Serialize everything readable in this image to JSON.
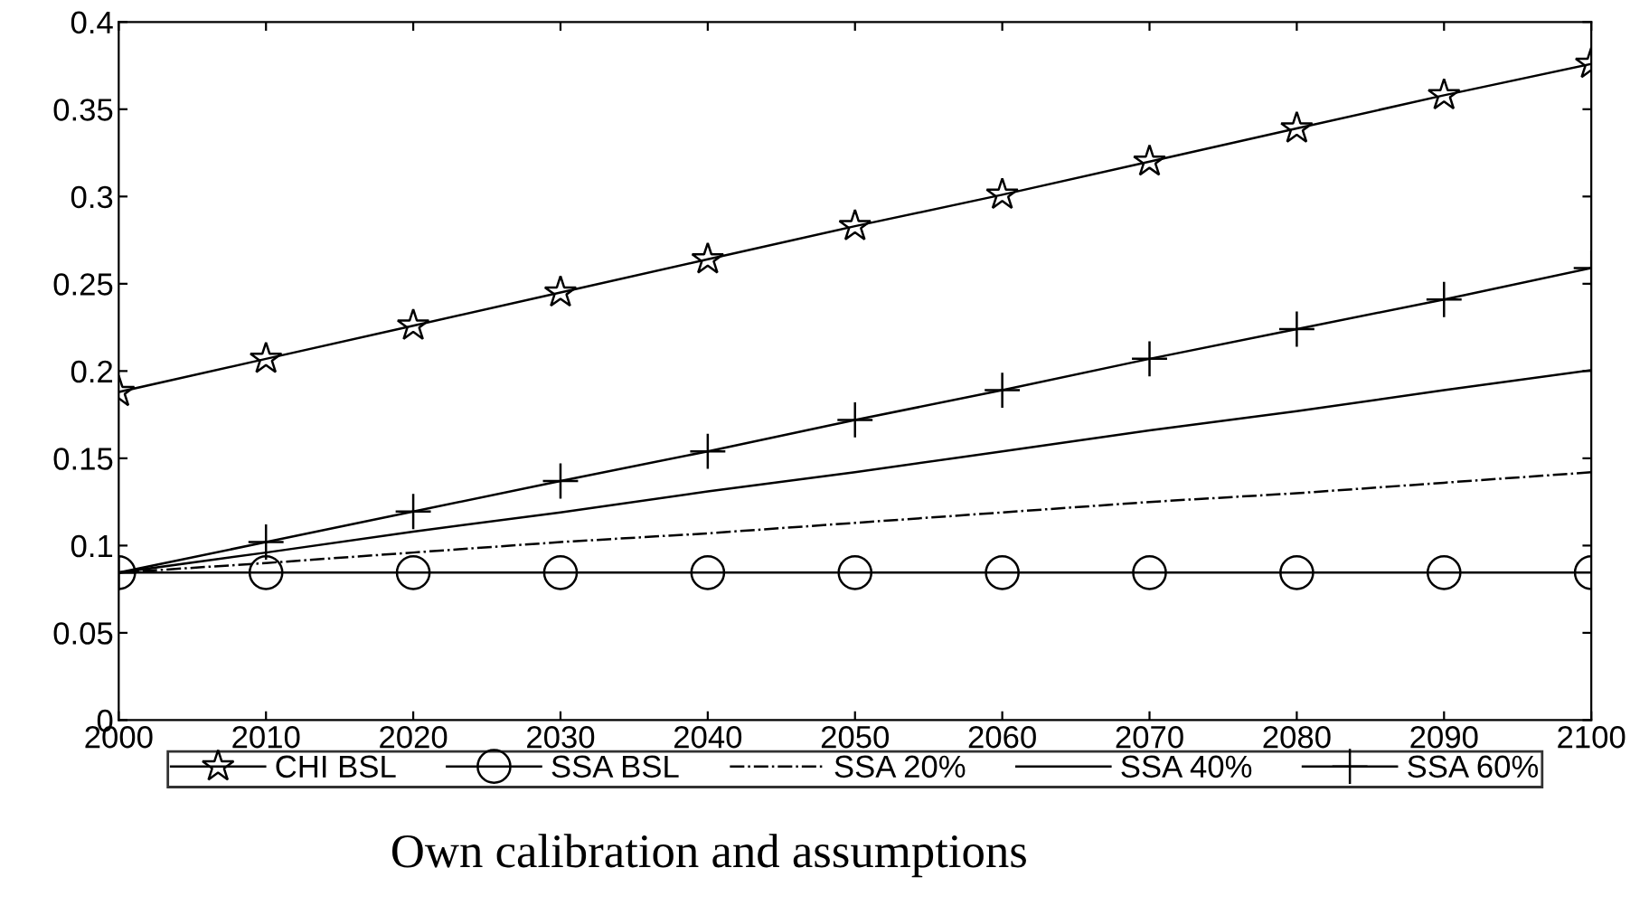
{
  "chart_data": {
    "type": "line",
    "x": [
      2000,
      2010,
      2020,
      2030,
      2040,
      2050,
      2060,
      2070,
      2080,
      2090,
      2100
    ],
    "series": [
      {
        "name": "CHI BSL",
        "color": "#000000",
        "marker": "star",
        "line_style": "solid",
        "values": [
          0.188,
          0.207,
          0.226,
          0.245,
          0.264,
          0.283,
          0.301,
          0.32,
          0.339,
          0.358,
          0.376
        ]
      },
      {
        "name": "SSA BSL",
        "color": "#000000",
        "marker": "circle",
        "line_style": "solid",
        "values": [
          0.0845,
          0.0845,
          0.0845,
          0.0845,
          0.0845,
          0.0845,
          0.0845,
          0.0845,
          0.0845,
          0.0845,
          0.0845
        ]
      },
      {
        "name": "SSA 20%",
        "color": "#000000",
        "marker": "none",
        "line_style": "dashdot",
        "values": [
          0.0845,
          0.09,
          0.096,
          0.102,
          0.107,
          0.113,
          0.119,
          0.125,
          0.13,
          0.136,
          0.142
        ]
      },
      {
        "name": "SSA 40%",
        "color": "#000000",
        "marker": "none",
        "line_style": "solid",
        "values": [
          0.0845,
          0.096,
          0.108,
          0.119,
          0.131,
          0.142,
          0.154,
          0.166,
          0.177,
          0.189,
          0.2005
        ]
      },
      {
        "name": "SSA 60%",
        "color": "#000000",
        "marker": "cross",
        "line_style": "solid",
        "values": [
          0.0845,
          0.102,
          0.1195,
          0.137,
          0.154,
          0.172,
          0.189,
          0.207,
          0.224,
          0.241,
          0.259
        ]
      }
    ],
    "xlim": [
      2000,
      2100
    ],
    "xticks": [
      2000,
      2010,
      2020,
      2030,
      2040,
      2050,
      2060,
      2070,
      2080,
      2090,
      2100
    ],
    "ylim": [
      0,
      0.4
    ],
    "yticks": [
      0,
      0.05,
      0.1,
      0.15,
      0.2,
      0.25,
      0.3,
      0.35,
      0.4
    ],
    "grid": false,
    "legend": "bottom",
    "annotations": [
      "Own calibration and assumptions"
    ]
  }
}
